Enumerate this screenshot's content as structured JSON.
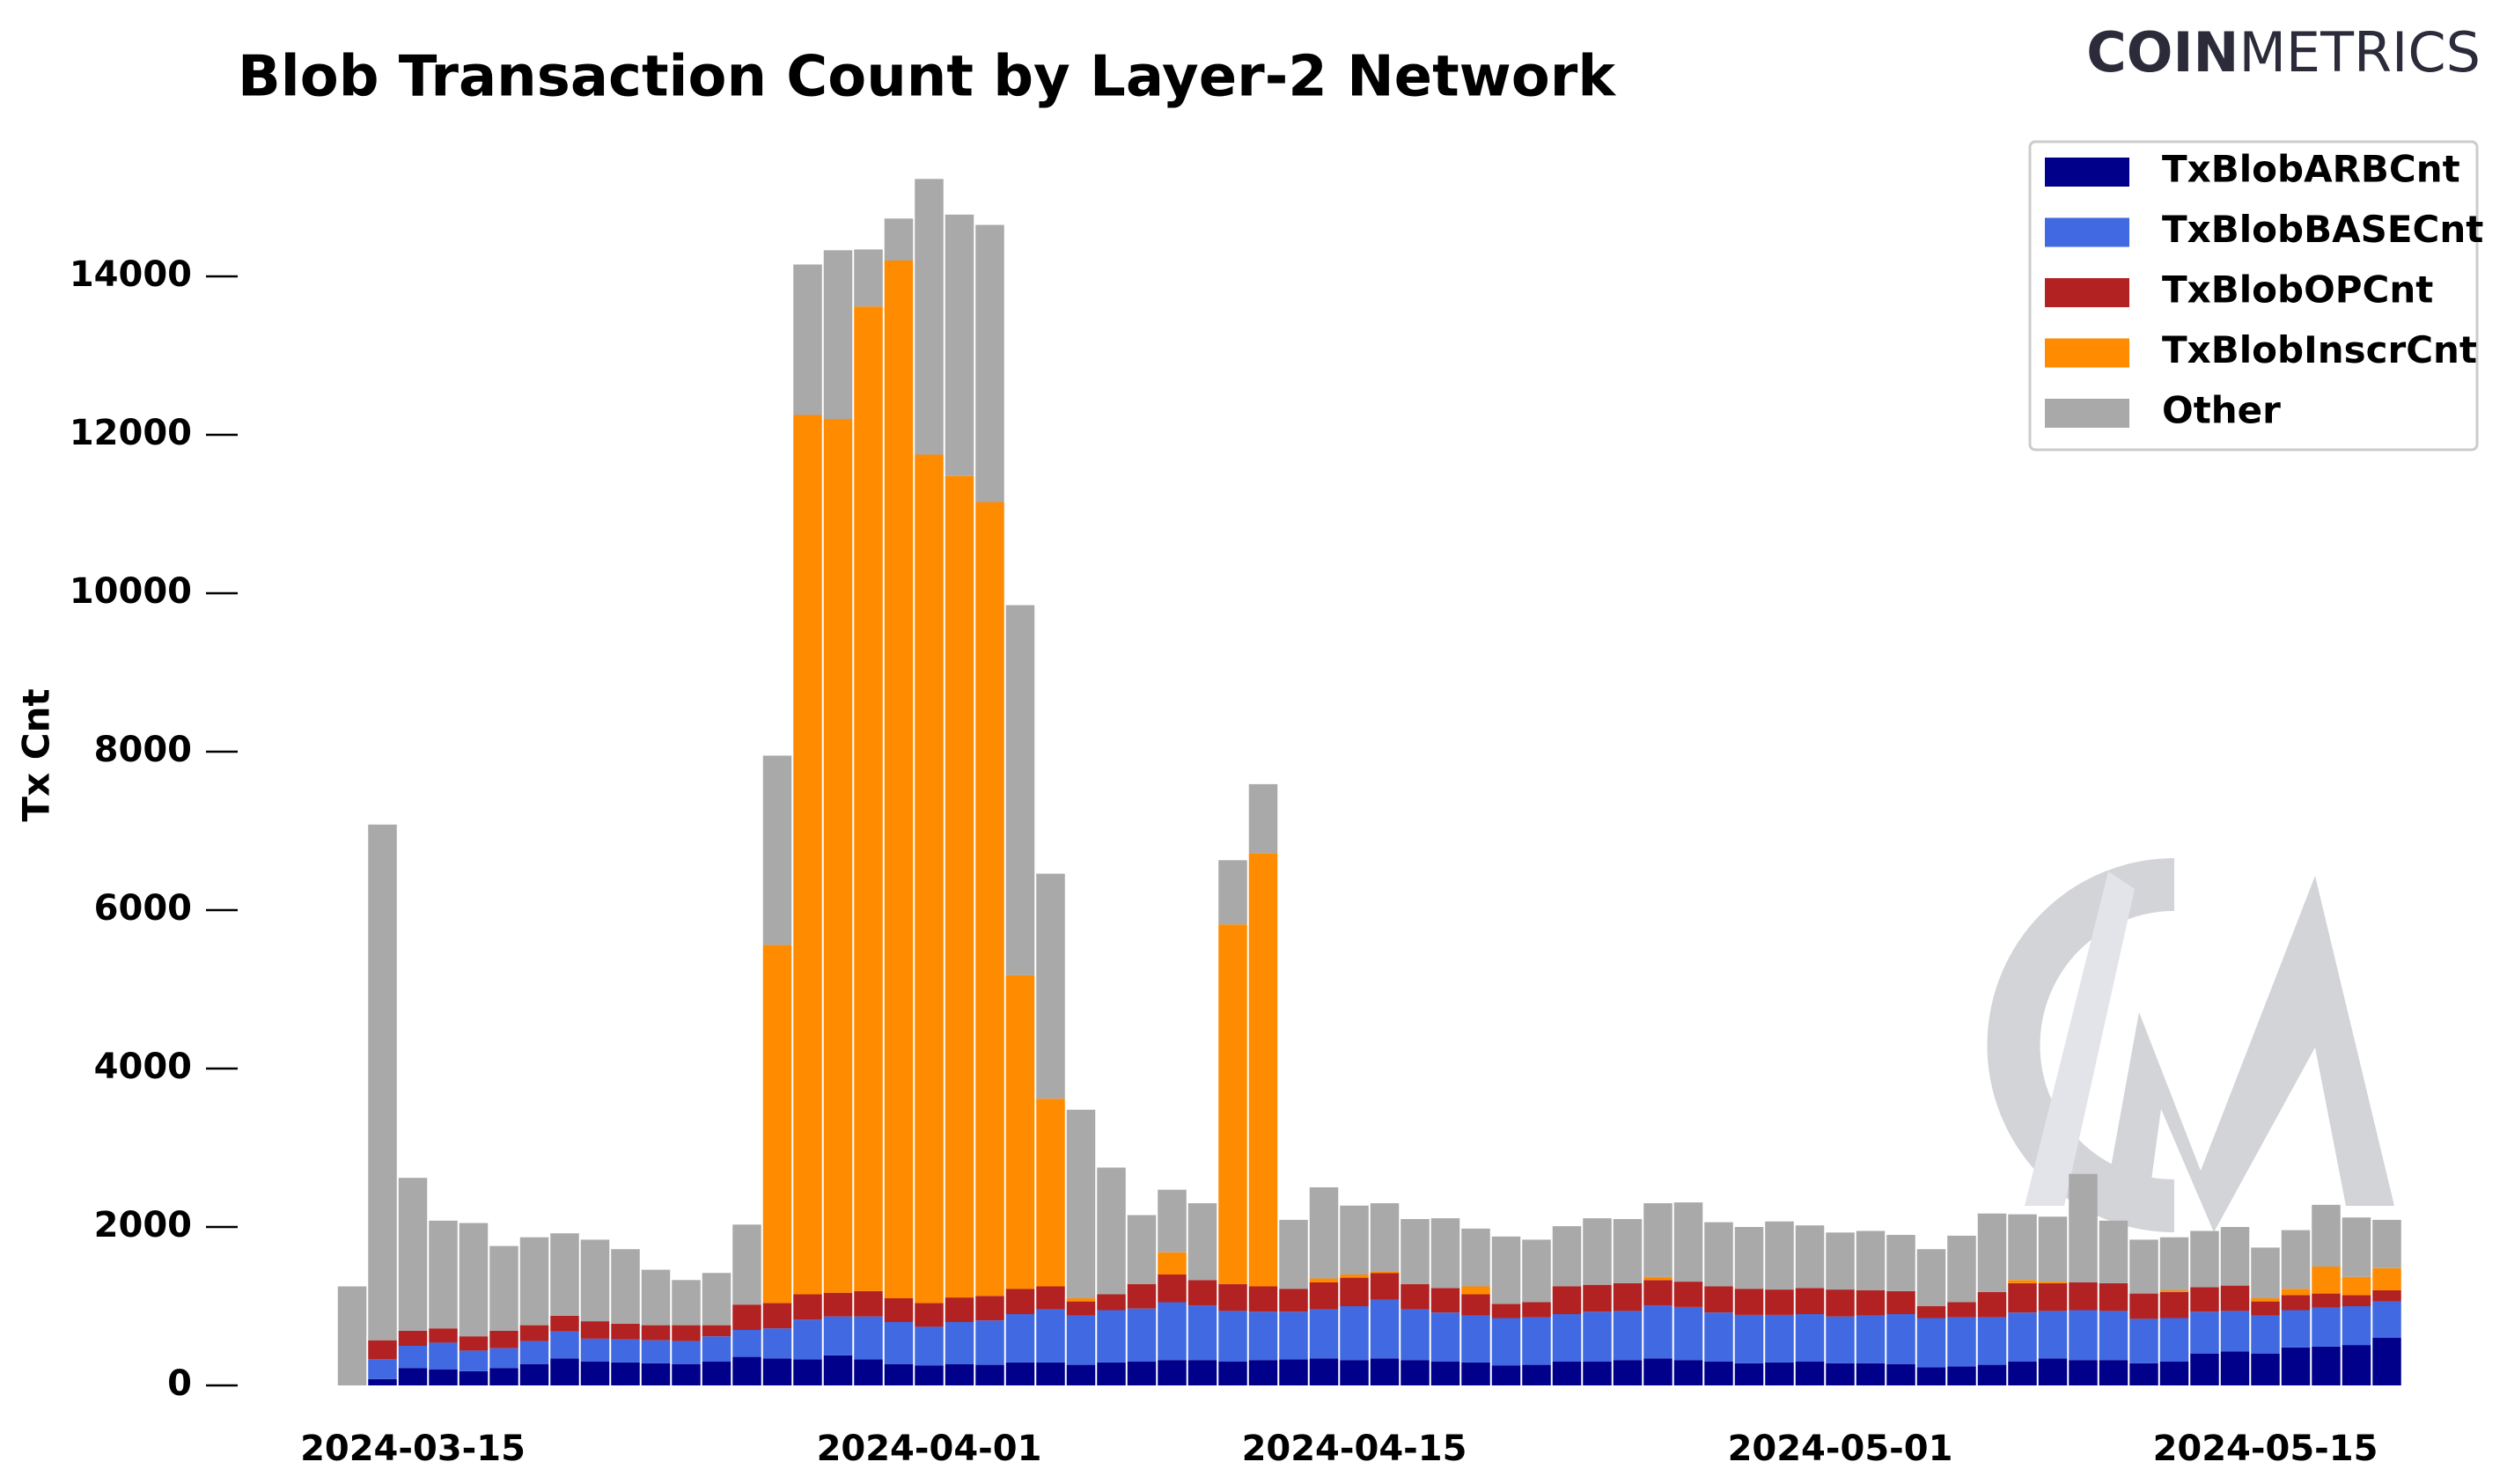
{
  "chart_data": {
    "type": "stacked_bar",
    "title": "Blob Transaction Count by Layer-2 Network",
    "brand": {
      "bold": "COIN",
      "light": "METRICS"
    },
    "ylabel": "Tx Cnt",
    "ylim": [
      0,
      15300
    ],
    "yticks": [
      0,
      2000,
      4000,
      6000,
      8000,
      10000,
      12000,
      14000
    ],
    "xticks": [
      "2024-03-15",
      "2024-04-01",
      "2024-04-15",
      "2024-05-01",
      "2024-05-15"
    ],
    "legend": "upper right",
    "x": [
      "2024-03-13",
      "2024-03-14",
      "2024-03-15",
      "2024-03-16",
      "2024-03-17",
      "2024-03-18",
      "2024-03-19",
      "2024-03-20",
      "2024-03-21",
      "2024-03-22",
      "2024-03-23",
      "2024-03-24",
      "2024-03-25",
      "2024-03-26",
      "2024-03-27",
      "2024-03-28",
      "2024-03-29",
      "2024-03-30",
      "2024-03-31",
      "2024-04-01",
      "2024-04-02",
      "2024-04-03",
      "2024-04-04",
      "2024-04-05",
      "2024-04-06",
      "2024-04-07",
      "2024-04-08",
      "2024-04-09",
      "2024-04-10",
      "2024-04-11",
      "2024-04-12",
      "2024-04-13",
      "2024-04-14",
      "2024-04-15",
      "2024-04-16",
      "2024-04-17",
      "2024-04-18",
      "2024-04-19",
      "2024-04-20",
      "2024-04-21",
      "2024-04-22",
      "2024-04-23",
      "2024-04-24",
      "2024-04-25",
      "2024-04-26",
      "2024-04-27",
      "2024-04-28",
      "2024-04-29",
      "2024-04-30",
      "2024-05-01",
      "2024-05-02",
      "2024-05-03",
      "2024-05-04",
      "2024-05-05",
      "2024-05-06",
      "2024-05-07",
      "2024-05-08",
      "2024-05-09",
      "2024-05-10",
      "2024-05-11",
      "2024-05-12",
      "2024-05-13",
      "2024-05-14",
      "2024-05-15",
      "2024-05-16",
      "2024-05-17",
      "2024-05-18",
      "2024-05-19"
    ],
    "series": [
      {
        "name": "TxBlobARBCnt",
        "color": "#00008b",
        "values": [
          0,
          80,
          220,
          200,
          180,
          220,
          270,
          340,
          300,
          290,
          280,
          270,
          300,
          360,
          340,
          330,
          380,
          330,
          270,
          250,
          270,
          260,
          290,
          290,
          260,
          290,
          300,
          320,
          320,
          300,
          320,
          330,
          340,
          320,
          340,
          320,
          300,
          290,
          250,
          260,
          300,
          300,
          320,
          340,
          320,
          300,
          280,
          290,
          300,
          280,
          280,
          270,
          230,
          240,
          260,
          300,
          340,
          320,
          320,
          280,
          300,
          400,
          430,
          400,
          480,
          490,
          510,
          600
        ]
      },
      {
        "name": "TxBlobBASECnt",
        "color": "#4169e1",
        "values": [
          0,
          250,
          280,
          340,
          260,
          250,
          290,
          340,
          290,
          290,
          290,
          290,
          320,
          340,
          380,
          500,
          490,
          540,
          530,
          490,
          530,
          560,
          610,
          670,
          620,
          660,
          670,
          730,
          690,
          640,
          610,
          600,
          620,
          680,
          740,
          640,
          620,
          590,
          600,
          600,
          600,
          630,
          620,
          670,
          670,
          620,
          610,
          600,
          600,
          590,
          600,
          630,
          620,
          620,
          600,
          620,
          600,
          630,
          620,
          560,
          550,
          530,
          510,
          480,
          470,
          490,
          490,
          460
        ]
      },
      {
        "name": "TxBlobOPCnt",
        "color": "#b22222",
        "values": [
          0,
          240,
          190,
          180,
          180,
          220,
          200,
          200,
          220,
          200,
          190,
          200,
          140,
          320,
          320,
          320,
          300,
          320,
          300,
          300,
          310,
          310,
          320,
          290,
          180,
          200,
          310,
          350,
          320,
          340,
          320,
          290,
          340,
          360,
          340,
          320,
          310,
          270,
          180,
          190,
          350,
          340,
          350,
          320,
          320,
          330,
          330,
          320,
          330,
          340,
          320,
          290,
          150,
          190,
          320,
          370,
          350,
          350,
          350,
          320,
          330,
          310,
          320,
          180,
          190,
          180,
          140,
          140
        ]
      },
      {
        "name": "TxBlobInscrCnt",
        "color": "#ff8c00",
        "values": [
          0,
          0,
          0,
          0,
          0,
          0,
          0,
          0,
          0,
          0,
          0,
          0,
          0,
          0,
          4520,
          11100,
          11030,
          12430,
          13100,
          10710,
          10370,
          10020,
          3960,
          2370,
          40,
          0,
          0,
          280,
          0,
          4540,
          5470,
          0,
          50,
          40,
          20,
          0,
          0,
          100,
          0,
          0,
          0,
          0,
          0,
          40,
          0,
          0,
          0,
          0,
          0,
          0,
          0,
          0,
          0,
          0,
          0,
          40,
          20,
          0,
          0,
          0,
          20,
          0,
          0,
          40,
          80,
          340,
          230,
          280
        ]
      },
      {
        "name": "Other",
        "color": "#a9a9a9",
        "values": [
          1250,
          6510,
          1930,
          1360,
          1430,
          1070,
          1110,
          1040,
          1030,
          940,
          700,
          570,
          660,
          1010,
          2390,
          1900,
          2130,
          720,
          530,
          3480,
          3300,
          3500,
          4670,
          2840,
          2380,
          1600,
          870,
          790,
          970,
          810,
          870,
          870,
          1150,
          870,
          860,
          820,
          880,
          730,
          850,
          790,
          760,
          840,
          810,
          930,
          1000,
          810,
          780,
          860,
          790,
          720,
          750,
          710,
          720,
          840,
          990,
          830,
          820,
          1370,
          790,
          680,
          670,
          710,
          740,
          640,
          740,
          780,
          750,
          610
        ]
      }
    ]
  }
}
